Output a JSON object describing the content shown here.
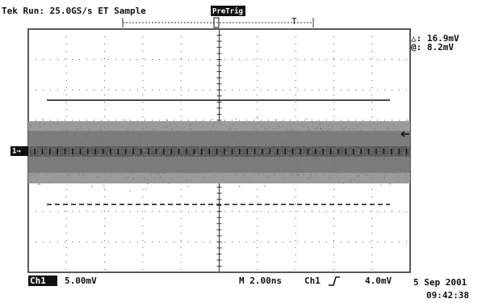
{
  "header": {
    "status": "Tek Run: 25.0GS/s ET Sample",
    "mode": "PreTrig",
    "trigger_marker": "T"
  },
  "readout": {
    "delta": "△: 16.9mV",
    "at": "@: 8.2mV"
  },
  "channel_marker": "1→",
  "footer": {
    "channel": "Ch1",
    "scale": "5.00mV",
    "timebase": "M 2.00ns",
    "trigger_source": "Ch1",
    "trigger_level": "4.0mV",
    "date": "5 Sep 2001",
    "time": "09:42:38"
  }
}
